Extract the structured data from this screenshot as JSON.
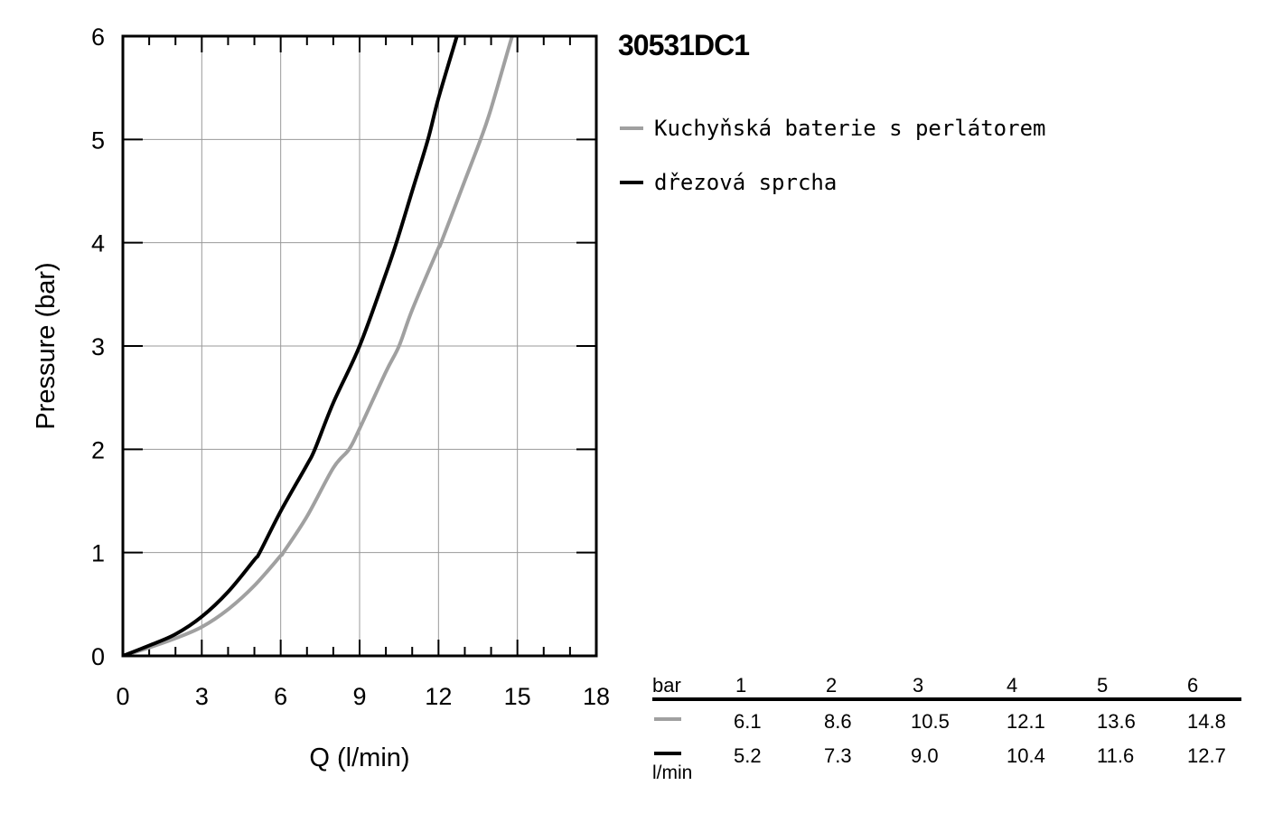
{
  "title": "30531DC1",
  "legend": [
    {
      "label": "Kuchyňská baterie s perlátorem",
      "color": "#a0a0a0"
    },
    {
      "label": "dřezová sprcha",
      "color": "#000000"
    }
  ],
  "table": {
    "header_unit": "bar",
    "columns": [
      "1",
      "2",
      "3",
      "4",
      "5",
      "6"
    ],
    "rows": [
      {
        "color": "#a0a0a0",
        "values": [
          "6.1",
          "8.6",
          "10.5",
          "12.1",
          "13.6",
          "14.8"
        ]
      },
      {
        "color": "#000000",
        "values": [
          "5.2",
          "7.3",
          "9.0",
          "10.4",
          "11.6",
          "12.7"
        ]
      }
    ],
    "flow_unit": "l/min"
  },
  "chart_data": {
    "type": "line",
    "xlabel": "Q (l/min)",
    "ylabel": "Pressure (bar)",
    "xlim": [
      0,
      18
    ],
    "ylim": [
      0,
      6
    ],
    "xticks": [
      "0",
      "3",
      "6",
      "9",
      "12",
      "15",
      "18"
    ],
    "yticks": [
      "0",
      "1",
      "2",
      "3",
      "4",
      "5",
      "6"
    ],
    "grid": true,
    "series": [
      {
        "name": "Kuchyňská baterie s perlátorem",
        "color": "#a0a0a0",
        "x": [
          0,
          1,
          2,
          3,
          4,
          5,
          6,
          6.1,
          7,
          8,
          8.6,
          9,
          10,
          10.5,
          11,
          12,
          12.1,
          13,
          13.6,
          14,
          14.8,
          14.9
        ],
        "y": [
          0,
          0.08,
          0.17,
          0.28,
          0.45,
          0.68,
          0.97,
          1.0,
          1.35,
          1.82,
          2.0,
          2.2,
          2.75,
          3.0,
          3.35,
          3.95,
          4.0,
          4.6,
          5.0,
          5.3,
          6.0,
          6.05
        ]
      },
      {
        "name": "dřezová sprcha",
        "color": "#000000",
        "x": [
          0,
          1,
          2,
          3,
          4,
          5,
          5.2,
          6,
          7,
          7.3,
          8,
          9,
          10,
          10.4,
          11,
          11.6,
          12,
          12.7
        ],
        "y": [
          0,
          0.1,
          0.21,
          0.38,
          0.62,
          0.93,
          1.0,
          1.4,
          1.85,
          2.0,
          2.45,
          3.0,
          3.7,
          4.0,
          4.5,
          5.0,
          5.4,
          6.0
        ]
      }
    ]
  }
}
